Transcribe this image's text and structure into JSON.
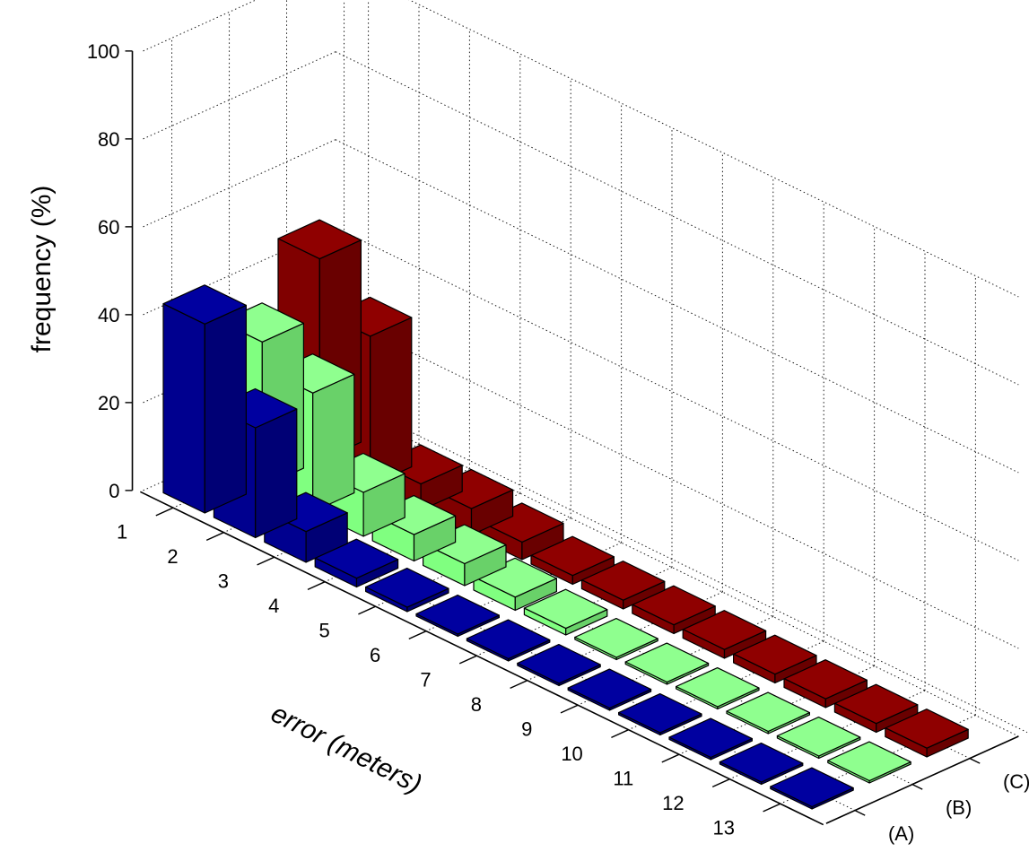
{
  "chart_data": {
    "type": "bar3d",
    "xlabel": "error (meters)",
    "ylabel": "frequency (%)",
    "zlim": [
      0,
      100
    ],
    "z_ticks": [
      0,
      20,
      40,
      60,
      80,
      100
    ],
    "categories": [
      "1",
      "2",
      "3",
      "4",
      "5",
      "6",
      "7",
      "8",
      "9",
      "10",
      "11",
      "12",
      "13"
    ],
    "grid": true,
    "series": [
      {
        "name": "(A)",
        "color": "#00008f",
        "values": [
          43,
          25,
          7,
          2,
          1,
          0.5,
          0.5,
          0.5,
          0.5,
          0.5,
          0.5,
          0.5,
          0.5
        ]
      },
      {
        "name": "(B)",
        "color": "#80ff80",
        "values": [
          33,
          27,
          10,
          6,
          5,
          3,
          1.5,
          0.5,
          0.5,
          0.5,
          0.5,
          0.5,
          0.5
        ]
      },
      {
        "name": "(C)",
        "color": "#800000",
        "values": [
          46,
          34,
          6,
          6,
          4,
          2,
          2,
          2,
          2,
          2,
          2,
          2,
          2
        ]
      }
    ]
  }
}
